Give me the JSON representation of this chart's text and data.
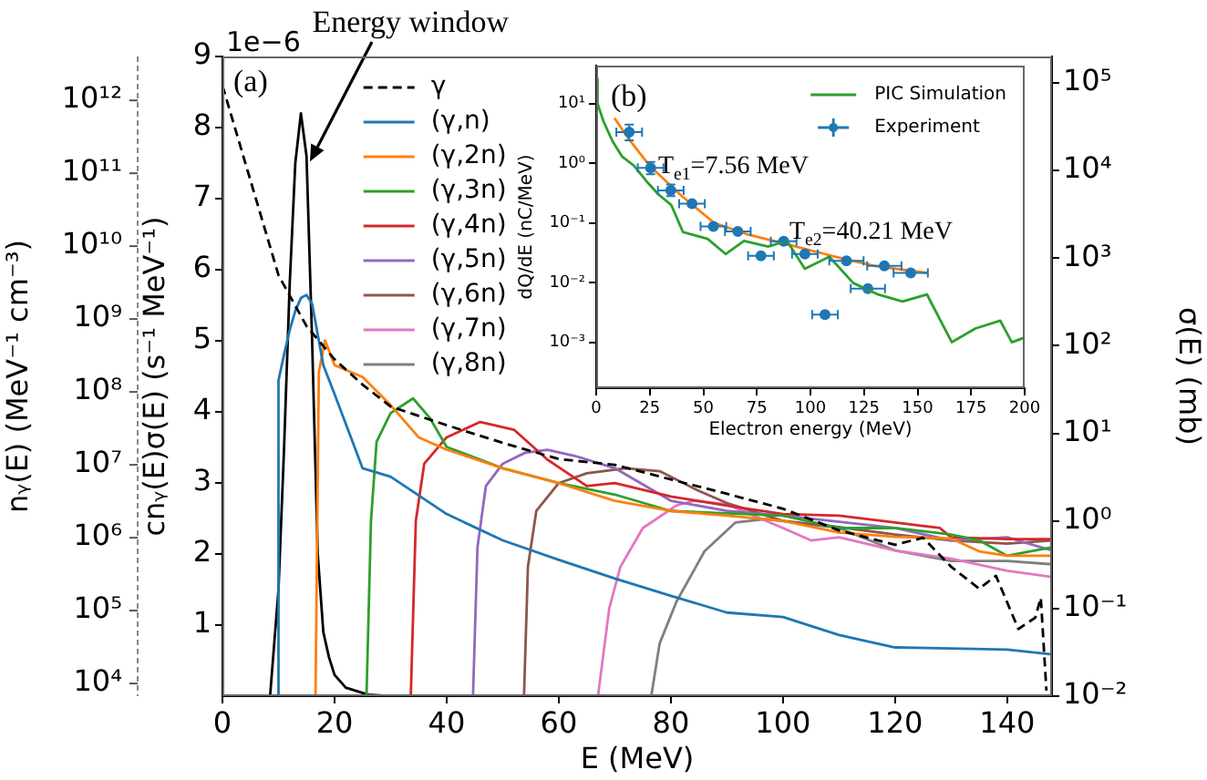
{
  "chart_data": [
    {
      "type": "line",
      "xlabel": "E (MeV)",
      "ylabel": "cnᵧ(E)σ(E) (s⁻¹ MeV⁻¹)",
      "y2label": "σ(E) (mb)",
      "xlim": [
        0,
        148
      ],
      "xticks": [
        0,
        20,
        40,
        60,
        80,
        100,
        120,
        140
      ],
      "ylim": [
        0,
        9
      ],
      "yticks": [
        1,
        2,
        3,
        4,
        5,
        6,
        7,
        8,
        9
      ],
      "y2lim": [
        0.01,
        200000
      ],
      "y2ticks": [
        {
          "value": 0.01,
          "label": "10⁻²"
        },
        {
          "value": 0.1,
          "label": "10⁻¹"
        },
        {
          "value": 1,
          "label": "10⁰"
        },
        {
          "value": 10,
          "label": "10¹"
        },
        {
          "value": 100,
          "label": "10²"
        },
        {
          "value": 1000,
          "label": "10³"
        },
        {
          "value": 10000,
          "label": "10⁴"
        },
        {
          "value": 100000,
          "label": "10⁵"
        }
      ],
      "log": "y2",
      "grid": false,
      "legend": "top left",
      "marker": "none",
      "annotations": [
        "(a)",
        "1e−6",
        {
          "text": "Energy window",
          "x": 15,
          "y": 7.6
        }
      ],
      "series": [
        {
          "name": "(γ,n)",
          "color": "#1f77b4",
          "axis": "y2",
          "x": [
            9.8,
            10,
            11,
            12,
            13,
            14,
            15,
            16,
            18,
            20,
            25,
            30,
            40,
            50,
            60,
            70,
            80,
            90,
            100,
            110,
            120,
            130,
            140,
            148
          ],
          "values": [
            0.01,
            40,
            80,
            150,
            250,
            350,
            380,
            300,
            60,
            28,
            4,
            3.2,
            1.2,
            0.6,
            0.36,
            0.22,
            0.14,
            0.09,
            0.08,
            0.05,
            0.036,
            0.035,
            0.034,
            0.03
          ]
        },
        {
          "name": "(γ,2n)",
          "color": "#ff7f0e",
          "axis": "y2",
          "x": [
            16.6,
            17.2,
            18.3,
            20,
            25,
            30,
            35,
            40,
            50,
            60,
            70,
            80,
            90,
            100,
            110,
            120,
            130,
            135,
            140,
            148
          ],
          "values": [
            0.01,
            50,
            115,
            60,
            44,
            21,
            9,
            6.5,
            4,
            2.7,
            1.7,
            1.3,
            1.15,
            1,
            0.74,
            0.66,
            0.63,
            0.45,
            0.4,
            0.4
          ]
        },
        {
          "name": "(γ,3n)",
          "color": "#2ca02c",
          "axis": "y2",
          "x": [
            25.7,
            26.5,
            27.5,
            30,
            34,
            37,
            40,
            50,
            60,
            70,
            80,
            100,
            110,
            120,
            130,
            135,
            140,
            148
          ],
          "values": [
            0.01,
            1,
            8,
            17,
            25,
            15,
            7,
            4,
            2.7,
            2,
            1.3,
            1.15,
            0.83,
            0.83,
            0.7,
            0.6,
            0.4,
            0.5
          ]
        },
        {
          "name": "(γ,4n)",
          "color": "#d62728",
          "axis": "y2",
          "x": [
            33.6,
            34.5,
            36,
            40,
            46,
            52,
            58,
            65,
            70,
            80,
            90,
            100,
            110,
            120,
            128,
            130,
            140,
            148
          ],
          "values": [
            0.01,
            1,
            4.5,
            9,
            13.5,
            11,
            5,
            2.5,
            2.7,
            1.9,
            1.5,
            1.2,
            1.15,
            0.96,
            0.83,
            0.65,
            0.62,
            0.62
          ]
        },
        {
          "name": "(γ,5n)",
          "color": "#9467bd",
          "axis": "y2",
          "x": [
            44.7,
            45.5,
            47,
            50,
            54,
            58,
            63,
            70,
            80,
            90,
            100,
            120,
            130,
            140,
            148
          ],
          "values": [
            0.01,
            0.5,
            2.5,
            4.5,
            6,
            6.5,
            5.5,
            4,
            1.7,
            1.3,
            1.15,
            0.83,
            0.6,
            0.65,
            0.46
          ]
        },
        {
          "name": "(γ,6n)",
          "color": "#8c564b",
          "axis": "y2",
          "x": [
            53.8,
            54.5,
            56,
            60,
            65,
            72,
            78,
            85,
            90,
            100,
            110,
            120,
            130,
            140,
            148
          ],
          "values": [
            0.01,
            0.3,
            1.3,
            2.7,
            3.5,
            4,
            3.7,
            2.2,
            1.6,
            1,
            0.85,
            0.7,
            0.6,
            0.55,
            0.6
          ]
        },
        {
          "name": "(γ,7n)",
          "color": "#e377c2",
          "axis": "y2",
          "x": [
            67,
            69,
            71,
            75,
            81,
            84,
            90,
            100,
            105,
            110,
            120,
            130,
            140,
            148
          ],
          "values": [
            0.01,
            0.1,
            0.3,
            0.83,
            1.5,
            1.7,
            1.55,
            0.83,
            0.6,
            0.65,
            0.46,
            0.37,
            0.27,
            0.23
          ]
        },
        {
          "name": "(γ,8n)",
          "color": "#7f7f7f",
          "axis": "y2",
          "x": [
            76.5,
            78,
            81,
            86,
            91.5,
            97,
            110,
            120,
            130,
            140,
            148
          ],
          "values": [
            0.01,
            0.04,
            0.12,
            0.45,
            0.96,
            1.05,
            0.83,
            0.46,
            0.35,
            0.35,
            0.32
          ]
        },
        {
          "color": "#000000",
          "axis": "y",
          "x": [
            0,
            8.5,
            10,
            11,
            12,
            13,
            14,
            15,
            16,
            17,
            18,
            19,
            20,
            22,
            26,
            30,
            148
          ],
          "values": [
            0,
            0,
            1.5,
            3.5,
            5.8,
            7.5,
            8.2,
            7.6,
            5,
            2,
            0.9,
            0.55,
            0.3,
            0.12,
            0.02,
            0,
            0
          ]
        }
      ]
    },
    {
      "type": "line",
      "ylabel": "nᵧ(E) (MeV⁻¹ cm⁻³)",
      "xlim": [
        0,
        148
      ],
      "ylim": [
        6700,
        4000000000000
      ],
      "yticks": [
        {
          "value": 10000,
          "label": "10⁴"
        },
        {
          "value": 100000,
          "label": "10⁵"
        },
        {
          "value": 1000000,
          "label": "10⁶"
        },
        {
          "value": 10000000,
          "label": "10⁷"
        },
        {
          "value": 100000000,
          "label": "10⁸"
        },
        {
          "value": 1000000000,
          "label": "10⁹"
        },
        {
          "value": 10000000000,
          "label": "10¹⁰"
        },
        {
          "value": 100000000000,
          "label": "10¹¹"
        },
        {
          "value": 1000000000000,
          "label": "10¹²"
        }
      ],
      "log": true,
      "tick_labels": "y",
      "grid": false,
      "legend": "top left",
      "marker": "none",
      "series": [
        {
          "name": "γ",
          "color": "#000000",
          "line_style": "dashed",
          "x": [
            0,
            5,
            10,
            15,
            20,
            25,
            30,
            40,
            50,
            60,
            70,
            80,
            90,
            100,
            110,
            120,
            125,
            130,
            135,
            138,
            142,
            145,
            146,
            147
          ],
          "values": [
            1600000000000,
            80000000000,
            4000000000,
            800000000,
            280000000,
            126000000,
            63000000,
            35000000,
            20000000,
            12000000,
            10000000,
            6300000,
            4000000,
            2500000,
            1260000,
            800000,
            1000000,
            400000,
            200000,
            300000,
            56000,
            80000,
            150000,
            8000
          ]
        }
      ]
    },
    {
      "type": "line",
      "xlabel": "Electron energy (MeV)",
      "ylabel": "dQ/dE (nC/MeV)",
      "xlim": [
        0,
        200
      ],
      "xticks": [
        0,
        25,
        50,
        75,
        100,
        125,
        150,
        175,
        200
      ],
      "ylim": [
        0.00017,
        43
      ],
      "yticks": [
        {
          "value": 0.001,
          "label": "10⁻³"
        },
        {
          "value": 0.01,
          "label": "10⁻²"
        },
        {
          "value": 0.1,
          "label": "10⁻¹"
        },
        {
          "value": 1,
          "label": "10⁰"
        },
        {
          "value": 10,
          "label": "10¹"
        }
      ],
      "log": true,
      "grid": false,
      "legend": "top right",
      "marker": "none",
      "annotations": [
        "(b)",
        "T$_{e1}$=7.56 MeV",
        "T$_{e2}$=40.21 MeV"
      ],
      "series": [
        {
          "name": "PIC Simulation",
          "color": "#2ca02c",
          "x": [
            0,
            0.6,
            3.4,
            7.7,
            12,
            17.7,
            23.4,
            29,
            35,
            40.5,
            52,
            60.4,
            69,
            80.3,
            89,
            97.4,
            108.8,
            120,
            131.6,
            143,
            154.4,
            166,
            177,
            188.6,
            194,
            200
          ],
          "values": [
            26,
            10,
            5,
            2.3,
            1.3,
            0.9,
            0.5,
            0.3,
            0.2,
            0.07,
            0.054,
            0.03,
            0.05,
            0.04,
            0.05,
            0.017,
            0.027,
            0.0098,
            0.0063,
            0.0048,
            0.0063,
            0.001,
            0.0017,
            0.0023,
            0.001,
            0.0012
          ]
        },
        {
          "name": "Experiment",
          "color": "#1f77b4",
          "type": "scatter",
          "marker": "circle",
          "x": [
            15.4,
            25.4,
            34.8,
            44.7,
            54.7,
            66.1,
            76.9,
            87.5,
            97.4,
            106.8,
            116.8,
            126.8,
            134.5,
            146.8
          ],
          "values": [
            3.3,
            0.83,
            0.35,
            0.21,
            0.087,
            0.072,
            0.028,
            0.049,
            0.03,
            0.0029,
            0.023,
            0.0079,
            0.019,
            0.0145
          ],
          "xerrors": [
            6,
            6,
            6,
            6,
            6,
            6,
            6,
            6,
            6,
            6,
            8,
            8,
            8,
            8
          ],
          "errors": [
            [
              2.4,
              4.4
            ],
            [
              0.65,
              1.05
            ],
            [
              0.28,
              0.44
            ],
            null,
            null,
            null,
            null,
            null,
            null,
            null,
            null,
            null,
            null,
            null
          ]
        },
        {
          "color": "#ff7f0e",
          "x": [
            8.5,
            15,
            25,
            40,
            55,
            70,
            90,
            110,
            130,
            154.4
          ],
          "values": [
            5.7,
            2.6,
            0.9,
            0.28,
            0.1,
            0.065,
            0.043,
            0.028,
            0.019,
            0.0145
          ]
        }
      ]
    }
  ]
}
